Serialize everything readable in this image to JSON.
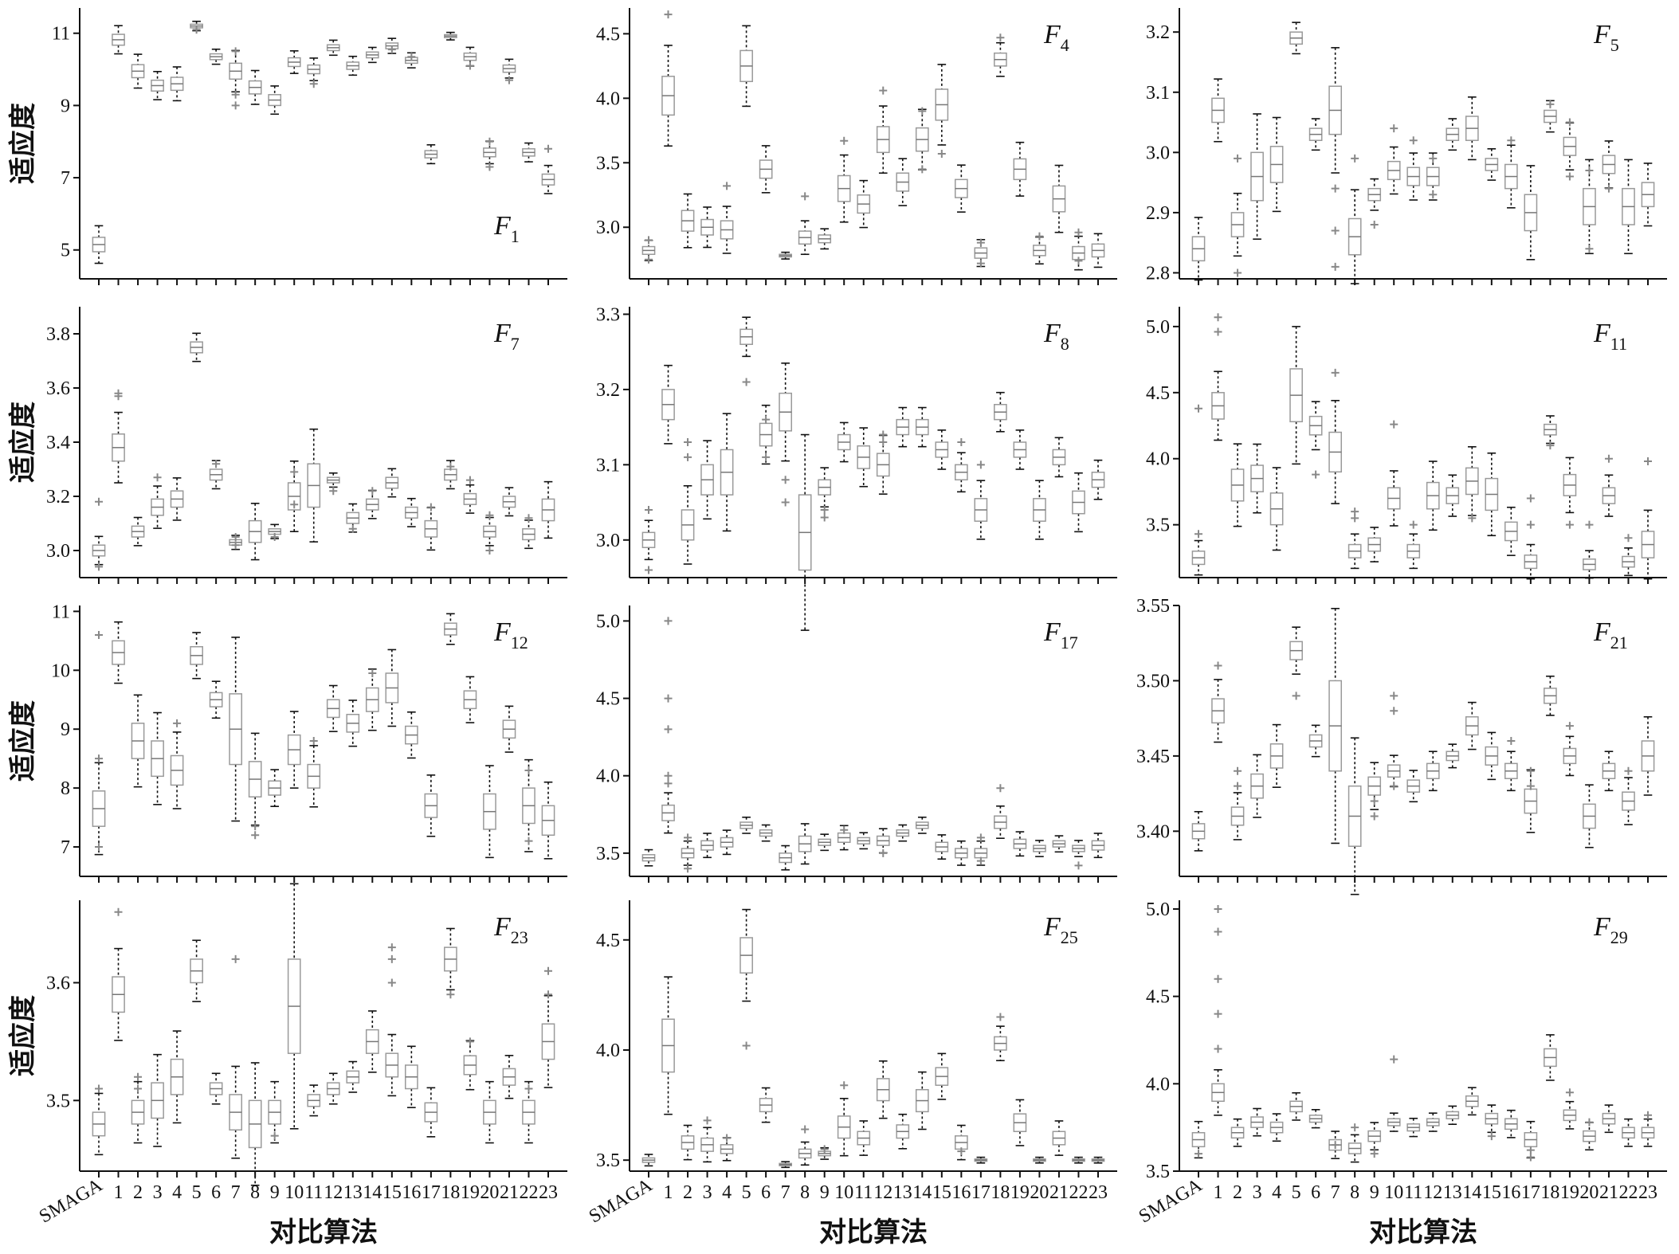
{
  "x_axis_label": "对比算法",
  "y_axis_label": "适应度",
  "categories": [
    "SMAGA",
    "1",
    "2",
    "3",
    "4",
    "5",
    "6",
    "7",
    "8",
    "9",
    "10",
    "11",
    "12",
    "13",
    "14",
    "15",
    "16",
    "17",
    "18",
    "19",
    "20",
    "21",
    "22",
    "23"
  ],
  "colors": {
    "box": "#9a9a9a",
    "whisker": "#111111",
    "outlier": "#888888",
    "axis": "#111111"
  },
  "chart_data": [
    {
      "type": "box",
      "title_base": "F",
      "title_sub": "1",
      "ylim": [
        4.2,
        11.7
      ],
      "yticks": [
        5,
        7,
        9,
        11
      ],
      "medians": [
        5.15,
        10.82,
        9.95,
        9.55,
        9.6,
        11.2,
        10.35,
        9.95,
        9.5,
        9.15,
        10.2,
        10.0,
        10.6,
        10.1,
        10.4,
        10.65,
        10.25,
        7.65,
        10.92,
        10.35,
        7.7,
        10.02,
        7.7,
        6.95
      ],
      "spreads": [
        0.2,
        0.15,
        0.18,
        0.15,
        0.18,
        0.05,
        0.08,
        0.22,
        0.18,
        0.15,
        0.12,
        0.12,
        0.08,
        0.1,
        0.08,
        0.08,
        0.08,
        0.1,
        0.04,
        0.1,
        0.12,
        0.1,
        0.1,
        0.15
      ],
      "outliers": [
        [],
        [],
        [],
        [],
        [],
        [
          11.1
        ],
        [],
        [
          9.0,
          10.5,
          9.3
        ],
        [],
        [],
        [],
        [
          9.6
        ],
        [],
        [],
        [],
        [
          10.55
        ],
        [
          10.35
        ],
        [],
        [],
        [
          10.1
        ],
        [
          7.3,
          8.0
        ],
        [
          9.7
        ],
        [],
        [
          7.8
        ]
      ]
    },
    {
      "type": "box",
      "title_base": "F",
      "title_sub": "4",
      "ylim": [
        2.6,
        4.7
      ],
      "yticks": [
        3.0,
        3.5,
        4.0,
        4.5
      ],
      "medians": [
        2.82,
        4.02,
        3.05,
        3.0,
        2.98,
        4.25,
        3.45,
        2.78,
        2.92,
        2.91,
        3.3,
        3.18,
        3.68,
        3.35,
        3.68,
        3.95,
        3.3,
        2.8,
        4.3,
        3.45,
        2.82,
        3.22,
        2.8,
        2.82
      ],
      "spreads": [
        0.03,
        0.15,
        0.08,
        0.06,
        0.07,
        0.12,
        0.07,
        0.01,
        0.05,
        0.03,
        0.1,
        0.07,
        0.1,
        0.07,
        0.09,
        0.12,
        0.07,
        0.04,
        0.05,
        0.08,
        0.04,
        0.1,
        0.05,
        0.05
      ],
      "outliers": [
        [
          2.9,
          2.75
        ],
        [
          4.65
        ],
        [],
        [],
        [
          3.32
        ],
        [],
        [],
        [],
        [
          3.24
        ],
        [],
        [
          3.67
        ],
        [],
        [
          4.06
        ],
        [],
        [
          3.9,
          3.45
        ],
        [
          3.57
        ],
        [],
        [
          2.88,
          2.72
        ],
        [
          4.47
        ],
        [],
        [
          2.93
        ],
        [],
        [
          2.96,
          2.74
        ],
        []
      ]
    },
    {
      "type": "box",
      "title_base": "F",
      "title_sub": "5",
      "ylim": [
        2.79,
        3.24
      ],
      "yticks": [
        2.8,
        2.9,
        3.0,
        3.1,
        3.2
      ],
      "medians": [
        2.84,
        3.07,
        2.88,
        2.96,
        2.98,
        3.19,
        3.03,
        3.07,
        2.86,
        2.93,
        2.97,
        2.96,
        2.96,
        3.03,
        3.04,
        2.98,
        2.96,
        2.9,
        3.06,
        3.01,
        2.91,
        2.98,
        2.91,
        2.93
      ],
      "spreads": [
        0.02,
        0.02,
        0.02,
        0.04,
        0.03,
        0.01,
        0.01,
        0.04,
        0.03,
        0.01,
        0.015,
        0.015,
        0.015,
        0.01,
        0.02,
        0.01,
        0.02,
        0.03,
        0.01,
        0.015,
        0.03,
        0.015,
        0.03,
        0.02
      ],
      "outliers": [
        [],
        [],
        [
          2.99,
          2.8
        ],
        [],
        [],
        [],
        [],
        [
          2.94,
          2.87,
          2.81
        ],
        [
          2.99
        ],
        [
          2.88
        ],
        [
          3.04
        ],
        [
          3.02
        ],
        [
          2.99,
          2.93
        ],
        [],
        [],
        [],
        [
          3.02
        ],
        [],
        [
          3.08
        ],
        [
          3.05,
          2.96
        ],
        [
          2.97,
          2.84
        ],
        [
          2.94
        ],
        [],
        []
      ]
    },
    {
      "type": "box",
      "title_base": "F",
      "title_sub": "7",
      "ylim": [
        2.9,
        3.9
      ],
      "yticks": [
        3.0,
        3.2,
        3.4,
        3.6,
        3.8
      ],
      "medians": [
        3.0,
        3.38,
        3.07,
        3.16,
        3.19,
        3.75,
        3.28,
        3.03,
        3.07,
        3.07,
        3.2,
        3.24,
        3.26,
        3.12,
        3.17,
        3.25,
        3.14,
        3.08,
        3.28,
        3.19,
        3.07,
        3.18,
        3.06,
        3.15
      ],
      "spreads": [
        0.02,
        0.05,
        0.02,
        0.03,
        0.03,
        0.02,
        0.02,
        0.01,
        0.04,
        0.01,
        0.05,
        0.08,
        0.01,
        0.02,
        0.02,
        0.02,
        0.02,
        0.03,
        0.02,
        0.02,
        0.02,
        0.02,
        0.02,
        0.04
      ],
      "outliers": [
        [
          3.18,
          2.94
        ],
        [
          3.57,
          3.58
        ],
        [],
        [
          3.27
        ],
        [],
        [],
        [
          3.32
        ],
        [
          3.02,
          3.05
        ],
        [],
        [
          3.05
        ],
        [
          3.29,
          3.17
        ],
        [],
        [
          3.22
        ],
        [
          3.08
        ],
        [
          3.22
        ],
        [],
        [],
        [
          3.16
        ],
        [
          3.31
        ],
        [
          3.26
        ],
        [
          3.0,
          3.13
        ],
        [],
        [
          3.12
        ],
        []
      ]
    },
    {
      "type": "box",
      "title_base": "F",
      "title_sub": "8",
      "ylim": [
        2.95,
        3.31
      ],
      "yticks": [
        3.0,
        3.1,
        3.2,
        3.3
      ],
      "medians": [
        3.0,
        3.18,
        3.02,
        3.08,
        3.09,
        3.27,
        3.14,
        3.17,
        3.01,
        3.07,
        3.13,
        3.11,
        3.1,
        3.15,
        3.15,
        3.12,
        3.09,
        3.04,
        3.17,
        3.12,
        3.04,
        3.11,
        3.05,
        3.08
      ],
      "spreads": [
        0.01,
        0.02,
        0.02,
        0.02,
        0.03,
        0.01,
        0.015,
        0.025,
        0.05,
        0.01,
        0.01,
        0.015,
        0.015,
        0.01,
        0.01,
        0.01,
        0.01,
        0.015,
        0.01,
        0.01,
        0.015,
        0.01,
        0.015,
        0.01
      ],
      "outliers": [
        [
          3.04,
          2.96
        ],
        [],
        [
          3.13,
          3.11
        ],
        [],
        [],
        [
          3.21
        ],
        [
          3.16,
          3.11
        ],
        [
          3.08,
          3.05
        ],
        [],
        [
          3.04,
          3.03
        ],
        [],
        [],
        [
          3.14,
          3.13
        ],
        [],
        [],
        [],
        [
          3.13
        ],
        [
          3.1
        ],
        [],
        [],
        [],
        [],
        [],
        []
      ]
    },
    {
      "type": "box",
      "title_base": "F",
      "title_sub": "11",
      "ylim": [
        3.1,
        5.15
      ],
      "yticks": [
        3.5,
        4.0,
        4.5,
        5.0
      ],
      "medians": [
        3.25,
        4.4,
        3.8,
        3.85,
        3.62,
        4.48,
        4.25,
        4.05,
        3.3,
        3.35,
        3.7,
        3.3,
        3.72,
        3.72,
        3.83,
        3.73,
        3.45,
        3.22,
        4.22,
        3.8,
        3.2,
        3.72,
        3.22,
        3.35
      ],
      "spreads": [
        0.05,
        0.1,
        0.12,
        0.1,
        0.12,
        0.2,
        0.07,
        0.15,
        0.05,
        0.05,
        0.08,
        0.05,
        0.1,
        0.06,
        0.1,
        0.12,
        0.07,
        0.05,
        0.04,
        0.08,
        0.04,
        0.06,
        0.04,
        0.1
      ],
      "outliers": [
        [
          4.38,
          3.43
        ],
        [
          5.07,
          4.96
        ],
        [],
        [],
        [],
        [],
        [
          3.88
        ],
        [
          4.65
        ],
        [
          3.6,
          3.55
        ],
        [],
        [
          4.26
        ],
        [
          3.5
        ],
        [],
        [],
        [
          3.55
        ],
        [],
        [],
        [
          3.7,
          3.5
        ],
        [
          4.1
        ],
        [
          3.5
        ],
        [
          3.5
        ],
        [
          4.0
        ],
        [
          3.4
        ],
        [
          3.98
        ]
      ]
    },
    {
      "type": "box",
      "title_base": "F",
      "title_sub": "12",
      "ylim": [
        6.5,
        11.1
      ],
      "yticks": [
        7,
        8,
        9,
        10,
        11
      ],
      "medians": [
        7.65,
        10.3,
        8.8,
        8.5,
        8.3,
        10.25,
        9.5,
        9.0,
        8.15,
        8.0,
        8.65,
        8.2,
        9.35,
        9.1,
        9.5,
        9.7,
        8.9,
        7.7,
        10.7,
        9.5,
        7.6,
        9.0,
        7.7,
        7.45
      ],
      "spreads": [
        0.3,
        0.2,
        0.3,
        0.3,
        0.25,
        0.15,
        0.12,
        0.6,
        0.3,
        0.12,
        0.25,
        0.2,
        0.15,
        0.15,
        0.2,
        0.25,
        0.15,
        0.2,
        0.1,
        0.15,
        0.3,
        0.15,
        0.3,
        0.25
      ],
      "outliers": [
        [
          10.6,
          8.5,
          7.0
        ],
        [],
        [],
        [],
        [
          9.1
        ],
        [],
        [],
        [],
        [
          7.2,
          7.35
        ],
        [],
        [],
        [
          8.8
        ],
        [],
        [],
        [
          9.95
        ],
        [],
        [],
        [],
        [],
        [],
        [],
        [],
        [
          8.3,
          7.1
        ],
        []
      ]
    },
    {
      "type": "box",
      "title_base": "F",
      "title_sub": "17",
      "ylim": [
        3.35,
        5.1
      ],
      "yticks": [
        3.5,
        4.0,
        4.5,
        5.0
      ],
      "medians": [
        3.47,
        3.76,
        3.5,
        3.55,
        3.57,
        3.68,
        3.63,
        3.47,
        3.56,
        3.57,
        3.6,
        3.58,
        3.58,
        3.63,
        3.68,
        3.54,
        3.5,
        3.5,
        3.7,
        3.56,
        3.53,
        3.56,
        3.53,
        3.55
      ],
      "spreads": [
        0.02,
        0.05,
        0.03,
        0.03,
        0.03,
        0.02,
        0.02,
        0.03,
        0.05,
        0.02,
        0.03,
        0.02,
        0.03,
        0.02,
        0.02,
        0.03,
        0.03,
        0.03,
        0.04,
        0.03,
        0.02,
        0.02,
        0.02,
        0.03
      ],
      "outliers": [
        [],
        [
          5.0,
          4.5,
          4.3,
          4.0,
          3.95
        ],
        [
          3.6,
          3.4
        ],
        [],
        [],
        [],
        [],
        [],
        [],
        [],
        [
          3.65
        ],
        [],
        [
          3.5
        ],
        [],
        [],
        [],
        [],
        [
          3.6,
          3.45
        ],
        [
          3.92
        ],
        [],
        [],
        [],
        [
          3.42
        ],
        []
      ]
    },
    {
      "type": "box",
      "title_base": "F",
      "title_sub": "21",
      "ylim": [
        3.37,
        3.55
      ],
      "yticks": [
        3.4,
        3.45,
        3.5,
        3.55
      ],
      "medians": [
        3.4,
        3.48,
        3.41,
        3.43,
        3.45,
        3.52,
        3.46,
        3.47,
        3.41,
        3.43,
        3.44,
        3.43,
        3.44,
        3.45,
        3.47,
        3.45,
        3.44,
        3.42,
        3.49,
        3.45,
        3.41,
        3.44,
        3.42,
        3.45
      ],
      "spreads": [
        0.005,
        0.008,
        0.006,
        0.008,
        0.008,
        0.006,
        0.004,
        0.03,
        0.02,
        0.006,
        0.004,
        0.004,
        0.005,
        0.003,
        0.006,
        0.006,
        0.005,
        0.008,
        0.005,
        0.005,
        0.008,
        0.005,
        0.006,
        0.01
      ],
      "outliers": [
        [],
        [
          3.51
        ],
        [
          3.44,
          3.43
        ],
        [],
        [],
        [
          3.49
        ],
        [],
        [],
        [],
        [
          3.41,
          3.42
        ],
        [
          3.49,
          3.48,
          3.43
        ],
        [],
        [],
        [],
        [],
        [],
        [
          3.46
        ],
        [
          3.44,
          3.43
        ],
        [],
        [
          3.47
        ],
        [],
        [],
        [
          3.44
        ],
        []
      ]
    },
    {
      "type": "box",
      "title_base": "F",
      "title_sub": "23",
      "ylim": [
        3.44,
        3.67
      ],
      "yticks": [
        3.5,
        3.6
      ],
      "medians": [
        3.48,
        3.59,
        3.49,
        3.5,
        3.52,
        3.61,
        3.51,
        3.49,
        3.48,
        3.49,
        3.58,
        3.5,
        3.51,
        3.52,
        3.55,
        3.53,
        3.52,
        3.49,
        3.62,
        3.53,
        3.49,
        3.52,
        3.49,
        3.55
      ],
      "spreads": [
        0.01,
        0.015,
        0.01,
        0.015,
        0.015,
        0.01,
        0.005,
        0.015,
        0.02,
        0.01,
        0.04,
        0.005,
        0.005,
        0.005,
        0.01,
        0.01,
        0.01,
        0.008,
        0.01,
        0.008,
        0.01,
        0.007,
        0.01,
        0.015
      ],
      "outliers": [
        [
          3.51
        ],
        [
          3.66
        ],
        [
          3.52,
          3.51
        ],
        [],
        [],
        [],
        [],
        [
          3.62
        ],
        [],
        [
          3.47
        ],
        [],
        [],
        [],
        [],
        [],
        [
          3.63,
          3.62,
          3.6
        ],
        [],
        [],
        [
          3.59
        ],
        [
          3.55
        ],
        [],
        [],
        [
          3.51
        ],
        [
          3.61,
          3.59
        ]
      ]
    },
    {
      "type": "box",
      "title_base": "F",
      "title_sub": "25",
      "ylim": [
        3.45,
        4.68
      ],
      "yticks": [
        3.5,
        4.0,
        4.5
      ],
      "medians": [
        3.5,
        4.02,
        3.58,
        3.57,
        3.55,
        4.43,
        3.75,
        3.48,
        3.53,
        3.53,
        3.65,
        3.6,
        3.82,
        3.63,
        3.77,
        3.88,
        3.58,
        3.5,
        4.03,
        3.67,
        3.5,
        3.6,
        3.5,
        3.5
      ],
      "spreads": [
        0.01,
        0.12,
        0.03,
        0.03,
        0.02,
        0.08,
        0.03,
        0.005,
        0.02,
        0.01,
        0.05,
        0.03,
        0.05,
        0.03,
        0.05,
        0.04,
        0.03,
        0.005,
        0.03,
        0.04,
        0.005,
        0.03,
        0.005,
        0.005
      ],
      "outliers": [
        [],
        [],
        [],
        [
          3.68
        ],
        [
          3.6
        ],
        [
          4.02
        ],
        [],
        [],
        [
          3.64
        ],
        [
          3.55
        ],
        [
          3.84
        ],
        [],
        [],
        [],
        [],
        [],
        [
          3.54
        ],
        [],
        [
          4.15
        ],
        [],
        [],
        [],
        [],
        []
      ]
    },
    {
      "type": "box",
      "title_base": "F",
      "title_sub": "29",
      "ylim": [
        3.5,
        5.05
      ],
      "yticks": [
        3.5,
        4.0,
        4.5,
        5.0
      ],
      "medians": [
        3.68,
        3.95,
        3.72,
        3.78,
        3.75,
        3.87,
        3.8,
        3.65,
        3.63,
        3.7,
        3.78,
        3.75,
        3.78,
        3.82,
        3.9,
        3.8,
        3.77,
        3.68,
        4.15,
        3.82,
        3.7,
        3.8,
        3.72,
        3.72
      ],
      "spreads": [
        0.04,
        0.05,
        0.03,
        0.03,
        0.03,
        0.03,
        0.02,
        0.03,
        0.03,
        0.03,
        0.02,
        0.02,
        0.02,
        0.02,
        0.03,
        0.03,
        0.03,
        0.04,
        0.05,
        0.03,
        0.03,
        0.03,
        0.03,
        0.03
      ],
      "outliers": [
        [
          3.6
        ],
        [
          5.0,
          4.87,
          4.6,
          4.4,
          4.2
        ],
        [],
        [],
        [],
        [],
        [],
        [
          3.65
        ],
        [
          3.75
        ],
        [
          3.6
        ],
        [
          4.14
        ],
        [],
        [],
        [],
        [],
        [
          3.7
        ],
        [],
        [
          3.58,
          3.62
        ],
        [],
        [
          3.95
        ],
        [
          3.78
        ],
        [],
        [],
        [
          3.82
        ]
      ]
    }
  ]
}
